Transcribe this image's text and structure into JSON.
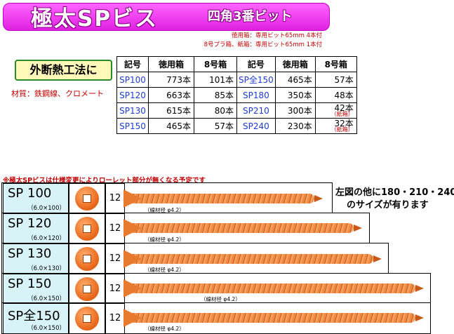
{
  "header": {
    "title": "極太SPビス",
    "subtitle": "四角3番ビット",
    "pack_note_1": "徳用箱：専用ビット65mm 4本付",
    "pack_note_2": "8号プラ箱、紙箱：専用ビット65mm 1本付"
  },
  "badge": {
    "method": "外断熱工法に"
  },
  "material": "材質：鉄鋼線、クロメート",
  "table": {
    "headers": [
      "記号",
      "徳用箱",
      "8号箱",
      "記号",
      "徳用箱",
      "8号箱"
    ],
    "rows": [
      {
        "code": "SP100",
        "box": "773本",
        "no8": "101本",
        "code2": "SP全150",
        "box2": "465本",
        "no82": "57本"
      },
      {
        "code": "SP120",
        "box": "663本",
        "no8": "85本",
        "code2": "SP180",
        "box2": "350本",
        "no82": "48本"
      },
      {
        "code": "SP130",
        "box": "615本",
        "no8": "80本",
        "code2": "SP210",
        "box2": "300本",
        "no82": "42本",
        "no82_note": "（紙箱）"
      },
      {
        "code": "SP150",
        "box": "465本",
        "no8": "57本",
        "code2": "SP240",
        "box2": "230本",
        "no82": "32本",
        "no82_note": "（紙箱）"
      }
    ]
  },
  "spec_change": "※極太SPビスは仕様変更によりローレット部分が無くなる予定です",
  "side_note": {
    "line1": "左図の他に180・210・240",
    "line2": "のサイズが有ります"
  },
  "products": [
    {
      "name": "SP 100",
      "size": "（6.0×100）",
      "bit": "12",
      "wire": "（線材径 φ4.2）"
    },
    {
      "name": "SP 120",
      "size": "（6.0×120）",
      "bit": "12",
      "wire": "（線材径 φ4.2）"
    },
    {
      "name": "SP 130",
      "size": "（6.0×130）",
      "bit": "12",
      "wire": "（線材径 φ4.2）"
    },
    {
      "name": "SP 150",
      "size": "（6.0×150）",
      "bit": "12",
      "wire": "（線材径 φ4.2）"
    },
    {
      "name": "SP全150",
      "size": "（6.0×150）",
      "bit": "12",
      "wire": "（線材径 φ4.2）"
    }
  ],
  "colors": {
    "banner": "#e020e0",
    "note_red": "#c00000",
    "code_blue": "#1f3bd6",
    "label_bg": "#d8f3f8",
    "screw_orange": "#ec6d20"
  }
}
